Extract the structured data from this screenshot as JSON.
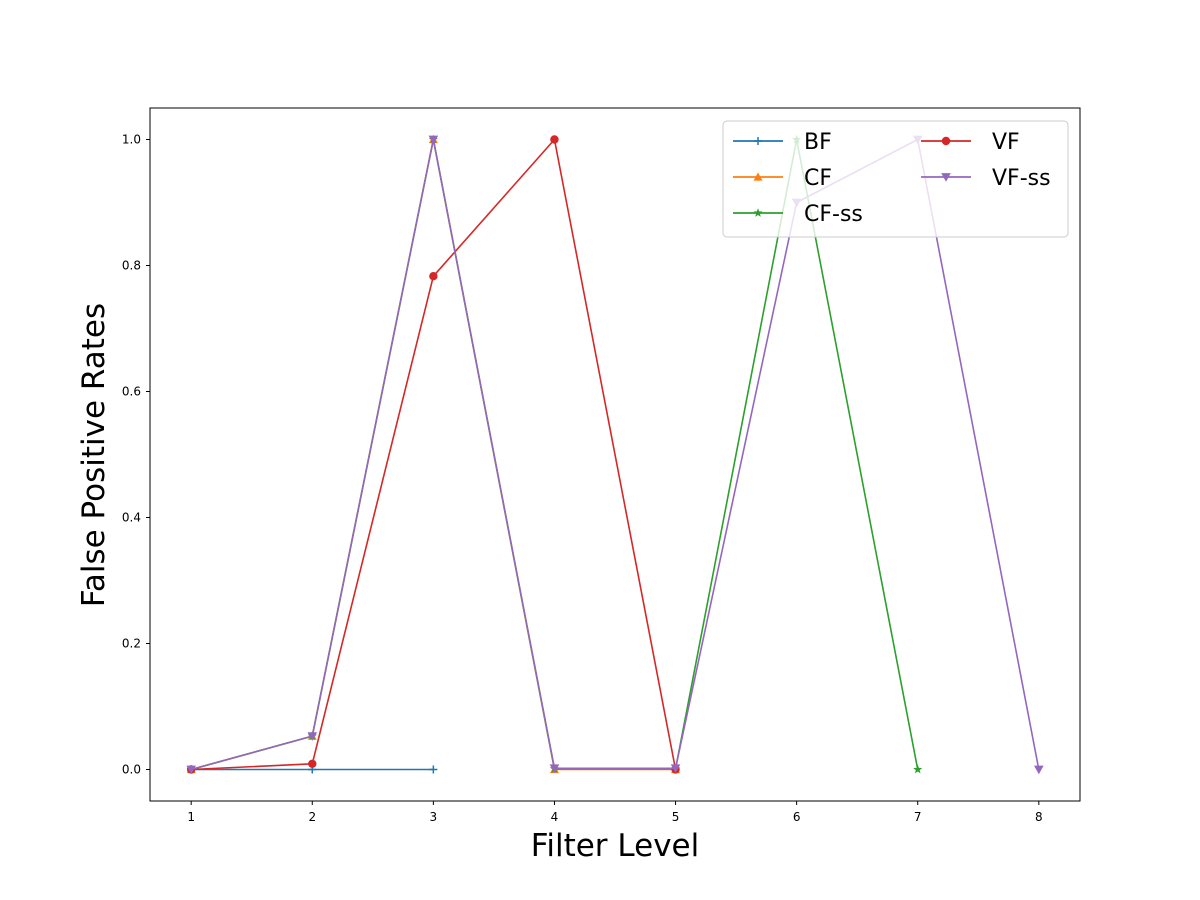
{
  "chart_data": {
    "type": "line",
    "title": "",
    "xlabel": "Filter Level",
    "ylabel": "False Positive Rates",
    "xlim": [
      0.66,
      8.34
    ],
    "ylim": [
      -0.05,
      1.05
    ],
    "xticks": [
      1,
      2,
      3,
      4,
      5,
      6,
      7,
      8
    ],
    "yticks": [
      0.0,
      0.2,
      0.4,
      0.6,
      0.8,
      1.0
    ],
    "ytick_labels": [
      "0.0",
      "0.2",
      "0.4",
      "0.6",
      "0.8",
      "1.0"
    ],
    "grid": false,
    "legend": {
      "placement": "top-right",
      "columns": 2
    },
    "series": [
      {
        "name": "BF",
        "color": "#1f77b4",
        "marker": "plus",
        "x": [
          1,
          2,
          3
        ],
        "y": [
          0.0,
          0.0,
          0.0
        ]
      },
      {
        "name": "CF",
        "color": "#ff7f0e",
        "marker": "triangle-up",
        "x": [
          1,
          2,
          3,
          4,
          5
        ],
        "y": [
          0.0,
          0.053,
          1.0,
          0.0,
          0.0
        ]
      },
      {
        "name": "CF-ss",
        "color": "#2ca02c",
        "marker": "star",
        "x": [
          1,
          2,
          3,
          4,
          5,
          6,
          7
        ],
        "y": [
          0.0,
          0.053,
          1.0,
          0.001,
          0.001,
          1.0,
          0.0
        ]
      },
      {
        "name": "VF",
        "color": "#d62728",
        "marker": "circle",
        "x": [
          1,
          2,
          3,
          4,
          5
        ],
        "y": [
          0.0,
          0.009,
          0.783,
          1.0,
          0.0
        ]
      },
      {
        "name": "VF-ss",
        "color": "#9467bd",
        "marker": "triangle-down",
        "x": [
          1,
          2,
          3,
          4,
          5,
          6,
          7,
          8
        ],
        "y": [
          0.0,
          0.053,
          1.0,
          0.002,
          0.002,
          0.9,
          1.0,
          0.0
        ]
      }
    ]
  }
}
